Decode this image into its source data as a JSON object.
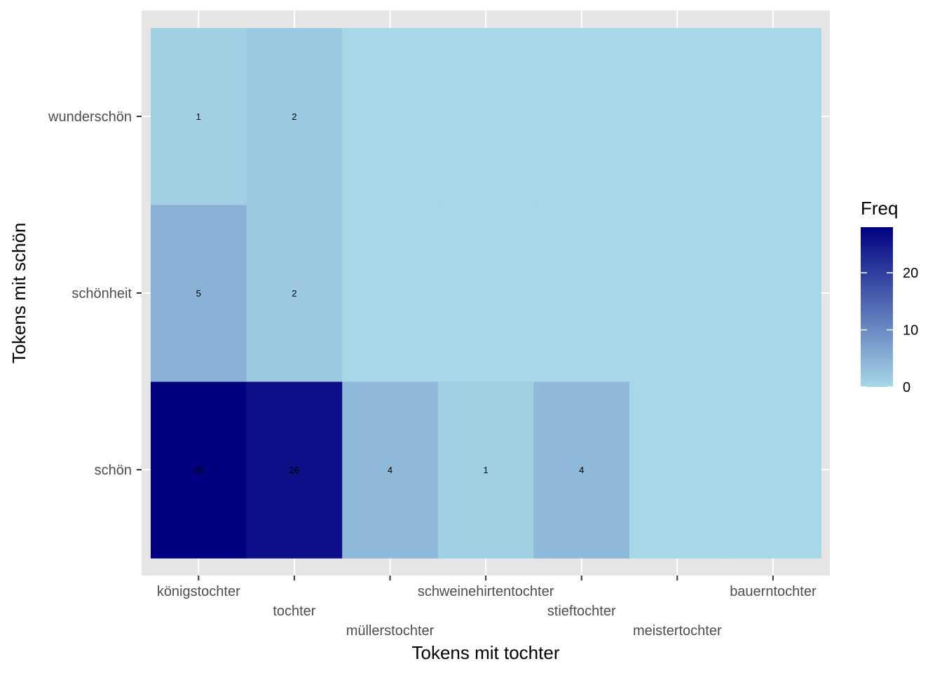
{
  "chart_data": {
    "type": "heatmap",
    "xlabel": "Tokens mit tochter",
    "ylabel": "Tokens mit schön",
    "x_categories": [
      "königstochter",
      "tochter",
      "müllerstochter",
      "schweinehirtentochter",
      "stieftochter",
      "meistertochter",
      "bauerntochter"
    ],
    "y_categories": [
      "schön",
      "schönheit",
      "wunderschön"
    ],
    "cells": [
      {
        "x": "königstochter",
        "y": "schön",
        "value": 28,
        "label": "28"
      },
      {
        "x": "tochter",
        "y": "schön",
        "value": 26,
        "label": "26"
      },
      {
        "x": "müllerstochter",
        "y": "schön",
        "value": 4,
        "label": "4"
      },
      {
        "x": "schweinehirtentochter",
        "y": "schön",
        "value": 1,
        "label": "1"
      },
      {
        "x": "stieftochter",
        "y": "schön",
        "value": 4,
        "label": "4"
      },
      {
        "x": "meistertochter",
        "y": "schön",
        "value": 0,
        "label": ""
      },
      {
        "x": "bauerntochter",
        "y": "schön",
        "value": 0,
        "label": ""
      },
      {
        "x": "königstochter",
        "y": "schönheit",
        "value": 5,
        "label": "5"
      },
      {
        "x": "tochter",
        "y": "schönheit",
        "value": 2,
        "label": "2"
      },
      {
        "x": "müllerstochter",
        "y": "schönheit",
        "value": 0,
        "label": ""
      },
      {
        "x": "schweinehirtentochter",
        "y": "schönheit",
        "value": 0,
        "label": ""
      },
      {
        "x": "stieftochter",
        "y": "schönheit",
        "value": 0,
        "label": ""
      },
      {
        "x": "meistertochter",
        "y": "schönheit",
        "value": 0,
        "label": ""
      },
      {
        "x": "bauerntochter",
        "y": "schönheit",
        "value": 0,
        "label": ""
      },
      {
        "x": "königstochter",
        "y": "wunderschön",
        "value": 1,
        "label": "1"
      },
      {
        "x": "tochter",
        "y": "wunderschön",
        "value": 2,
        "label": "2"
      },
      {
        "x": "müllerstochter",
        "y": "wunderschön",
        "value": 0,
        "label": ""
      },
      {
        "x": "schweinehirtentochter",
        "y": "wunderschön",
        "value": 0,
        "label": ""
      },
      {
        "x": "stieftochter",
        "y": "wunderschön",
        "value": 0,
        "label": ""
      },
      {
        "x": "meistertochter",
        "y": "wunderschön",
        "value": 0,
        "label": ""
      },
      {
        "x": "bauerntochter",
        "y": "wunderschön",
        "value": 0,
        "label": ""
      }
    ],
    "legend": {
      "title": "Freq",
      "placement": "right",
      "range": [
        0,
        28
      ],
      "ticks": [
        0,
        10,
        20
      ],
      "tick_labels": [
        "0",
        "10",
        "20"
      ],
      "low_color": "#a6d8e8",
      "high_color": "#000080"
    },
    "panel_background": "#e5e5e5",
    "grid_color": "#ffffff",
    "grid": true
  }
}
